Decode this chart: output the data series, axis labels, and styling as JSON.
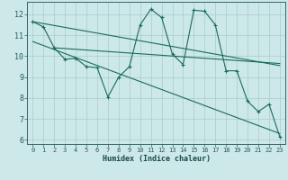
{
  "xlabel": "Humidex (Indice chaleur)",
  "bg_color": "#cce8e8",
  "grid_color": "#aacccc",
  "line_color": "#1a6b5a",
  "xlim": [
    -0.5,
    23.5
  ],
  "ylim": [
    5.8,
    12.6
  ],
  "xticks": [
    0,
    1,
    2,
    3,
    4,
    5,
    6,
    7,
    8,
    9,
    10,
    11,
    12,
    13,
    14,
    15,
    16,
    17,
    18,
    19,
    20,
    21,
    22,
    23
  ],
  "yticks": [
    6,
    7,
    8,
    9,
    10,
    11,
    12
  ],
  "curve_x": [
    0,
    1,
    2,
    3,
    4,
    5,
    6,
    7,
    8,
    9,
    10,
    11,
    12,
    13,
    14,
    15,
    16,
    17,
    18,
    19,
    20,
    21,
    22,
    23
  ],
  "curve_y": [
    11.65,
    11.4,
    10.4,
    9.85,
    9.9,
    9.5,
    9.45,
    8.05,
    9.0,
    9.5,
    11.5,
    12.25,
    11.85,
    10.1,
    9.6,
    12.2,
    12.15,
    11.5,
    9.3,
    9.3,
    7.85,
    7.35,
    7.7,
    6.15
  ],
  "trend1_x": [
    0,
    23
  ],
  "trend1_y": [
    11.65,
    9.55
  ],
  "trend2_x": [
    2,
    23
  ],
  "trend2_y": [
    10.4,
    9.65
  ],
  "trend3_x": [
    0,
    23
  ],
  "trend3_y": [
    10.7,
    6.3
  ]
}
